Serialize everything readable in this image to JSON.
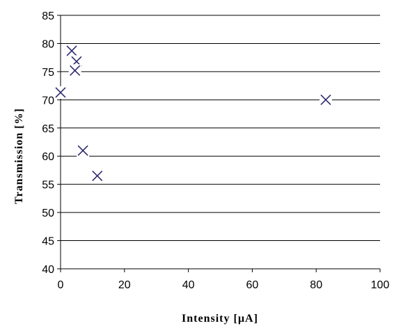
{
  "chart_data": {
    "type": "scatter",
    "title": "",
    "xlabel": "Intensity [µA]",
    "ylabel": "Transmission [%]",
    "xlim": [
      0,
      100
    ],
    "ylim": [
      40,
      85
    ],
    "x_ticks": [
      0,
      20,
      40,
      60,
      80,
      100
    ],
    "y_ticks": [
      40,
      45,
      50,
      55,
      60,
      65,
      70,
      75,
      80,
      85
    ],
    "grid": "horizontal",
    "marker": "x",
    "marker_color": "#2e2a6e",
    "series": [
      {
        "points": [
          {
            "x": 0,
            "y": 71.3
          },
          {
            "x": 3.5,
            "y": 78.7
          },
          {
            "x": 5,
            "y": 76.8
          },
          {
            "x": 4.5,
            "y": 75.2
          },
          {
            "x": 7,
            "y": 61
          },
          {
            "x": 11.5,
            "y": 56.5
          },
          {
            "x": 83,
            "y": 70
          }
        ]
      }
    ]
  }
}
